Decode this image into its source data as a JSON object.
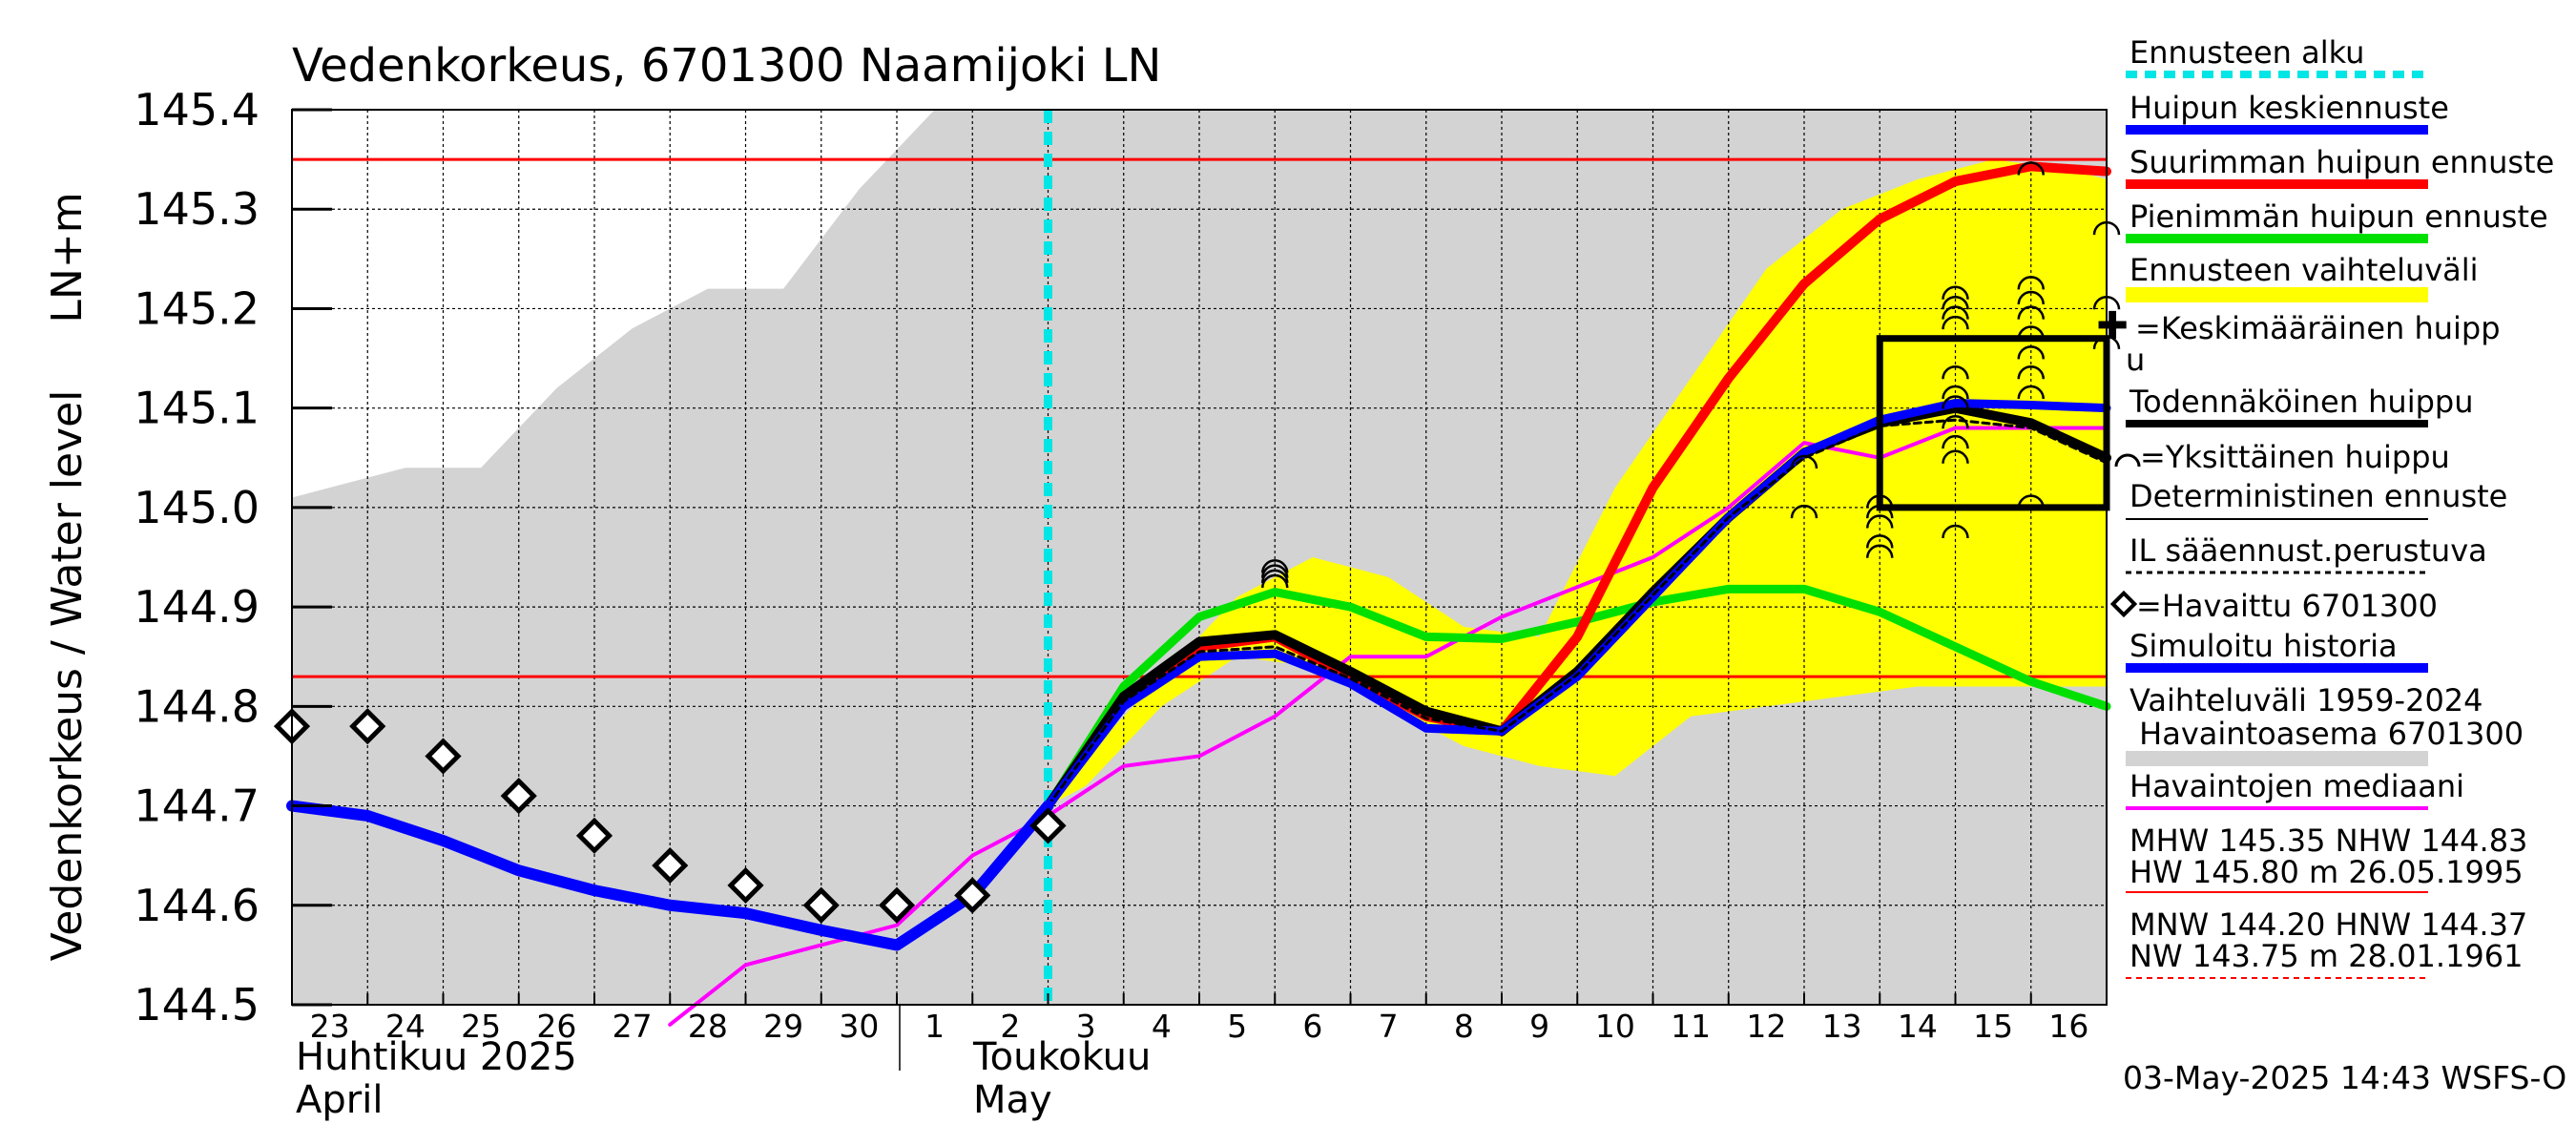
{
  "chart_data": {
    "type": "line",
    "title": "Vedenkorkeus, 6701300 Naamijoki LN",
    "ylabel_top": "LN+m",
    "ylabel": "Vedenkorkeus / Water level",
    "ylim": [
      144.5,
      145.4
    ],
    "yticks": [
      "144.5",
      "144.6",
      "144.7",
      "144.8",
      "144.9",
      "145.0",
      "145.1",
      "145.2",
      "145.3",
      "145.4"
    ],
    "xlim": [
      -0.5,
      23.5
    ],
    "x_tick_labels": [
      "23",
      "24",
      "25",
      "26",
      "27",
      "28",
      "29",
      "30",
      "1",
      "2",
      "3",
      "4",
      "5",
      "6",
      "7",
      "8",
      "9",
      "10",
      "11",
      "12",
      "13",
      "14",
      "15",
      "16"
    ],
    "month_labels": [
      {
        "line1": "Huhtikuu  2025",
        "line2": "April"
      },
      {
        "line1": "Toukokuu",
        "line2": "May"
      }
    ],
    "grid": true,
    "forecast_start_x": 9.5,
    "reference_levels": {
      "MHW": 145.35,
      "NHW": 144.83
    },
    "historical_range_1959_2024": {
      "x": [
        -0.5,
        1,
        2,
        3,
        4,
        5,
        6,
        7,
        7.5,
        8,
        9,
        10,
        11,
        12,
        13,
        14,
        15,
        16,
        17,
        18,
        19,
        20,
        21,
        22,
        23,
        23.5
      ],
      "upper": [
        145.01,
        145.04,
        145.04,
        145.12,
        145.18,
        145.22,
        145.22,
        145.32,
        145.36,
        145.4,
        145.4,
        145.4,
        145.4,
        145.4,
        145.4,
        145.4,
        145.4,
        145.4,
        145.4,
        145.4,
        145.4,
        145.4,
        145.4,
        145.4,
        145.4,
        145.4
      ],
      "lower": [
        144.5,
        144.5,
        144.5,
        144.5,
        144.5,
        144.5,
        144.5,
        144.5,
        144.5,
        144.5,
        144.5,
        144.5,
        144.5,
        144.5,
        144.5,
        144.5,
        144.5,
        144.5,
        144.5,
        144.5,
        144.5,
        144.5,
        144.5,
        144.5,
        144.5,
        144.5
      ]
    },
    "forecast_range": {
      "x": [
        9.5,
        10,
        11,
        12,
        13,
        14,
        15,
        16,
        17,
        18,
        19,
        20,
        21,
        22,
        23,
        23.5
      ],
      "upper": [
        144.7,
        144.75,
        144.83,
        144.91,
        144.95,
        144.93,
        144.88,
        144.87,
        145.02,
        145.13,
        145.24,
        145.3,
        145.33,
        145.35,
        145.34,
        145.33
      ],
      "lower": [
        144.7,
        144.72,
        144.8,
        144.85,
        144.84,
        144.8,
        144.76,
        144.74,
        144.73,
        144.79,
        144.8,
        144.81,
        144.82,
        144.82,
        144.82,
        144.82
      ]
    },
    "series": [
      {
        "name": "Simuloitu historia",
        "x": [
          -0.5,
          0.5,
          1.5,
          2.5,
          3.5,
          4.5,
          5.5,
          6.5,
          7.5,
          8.5,
          9.5
        ],
        "values": [
          144.7,
          144.69,
          144.665,
          144.635,
          144.615,
          144.6,
          144.592,
          144.575,
          144.56,
          144.61,
          144.7
        ]
      },
      {
        "name": "Huipun keskiennuste",
        "x": [
          9.5,
          10.5,
          11.5,
          12.5,
          13.5,
          14.5,
          15.5,
          16.5,
          17.5,
          18.5,
          19.5,
          20.5,
          21.5,
          22.5,
          23.5
        ],
        "values": [
          144.7,
          144.8,
          144.85,
          144.853,
          144.823,
          144.778,
          144.775,
          144.83,
          144.91,
          144.99,
          145.055,
          145.088,
          145.105,
          145.103,
          145.1
        ]
      },
      {
        "name": "Suurimman huipun ennuste",
        "x": [
          9.5,
          10.5,
          11.5,
          12.5,
          13.5,
          14.5,
          15.5,
          16.5,
          17.5,
          18.5,
          19.5,
          20.5,
          21.5,
          22.5,
          23.5
        ],
        "values": [
          144.7,
          144.81,
          144.86,
          144.87,
          144.83,
          144.79,
          144.775,
          144.87,
          145.02,
          145.13,
          145.225,
          145.29,
          145.328,
          145.343,
          145.338
        ]
      },
      {
        "name": "Pienimmän huipun ennuste",
        "x": [
          9.5,
          10.5,
          11.5,
          12.5,
          13.5,
          14.5,
          15.5,
          16.5,
          17.5,
          18.5,
          19.5,
          20.5,
          21.5,
          22.5,
          23.5
        ],
        "values": [
          144.7,
          144.82,
          144.89,
          144.915,
          144.9,
          144.87,
          144.868,
          144.885,
          144.905,
          144.918,
          144.918,
          144.895,
          144.86,
          144.825,
          144.8
        ]
      },
      {
        "name": "Todennäköinen huippu",
        "x": [
          9.5,
          10.5,
          11.5,
          12.5,
          13.5,
          14.5,
          15.5,
          16.5,
          17.5,
          18.5,
          19.5,
          20.5,
          21.5,
          22.5,
          23.5
        ],
        "values": [
          144.7,
          144.81,
          144.865,
          144.872,
          144.835,
          144.795,
          144.775,
          144.835,
          144.915,
          144.99,
          145.055,
          145.085,
          145.1,
          145.085,
          145.05
        ]
      },
      {
        "name": "IL sääennust.perustuva",
        "x": [
          9.5,
          10.5,
          11.5,
          12.5,
          13.5,
          14.5,
          15.5,
          16.5,
          17.5,
          18.5,
          19.5,
          20.5,
          21.5,
          22.5,
          23.5
        ],
        "values": [
          144.7,
          144.805,
          144.855,
          144.86,
          144.828,
          144.788,
          144.775,
          144.832,
          144.912,
          144.99,
          145.05,
          145.082,
          145.088,
          145.08,
          145.045
        ]
      },
      {
        "name": "Havaintojen mediaani",
        "x": [
          4.5,
          5.5,
          6.5,
          7.5,
          8.5,
          9.5,
          10.5,
          11.5,
          12.5,
          13.5,
          14.5,
          15.5,
          16.5,
          17.5,
          18.5,
          19.5,
          20.5,
          21.5,
          22.5,
          23.5
        ],
        "values": [
          144.48,
          144.54,
          144.56,
          144.58,
          144.65,
          144.69,
          144.74,
          144.75,
          144.79,
          144.85,
          144.85,
          144.89,
          144.92,
          144.95,
          145.0,
          145.065,
          145.05,
          145.08,
          145.08,
          145.08
        ]
      }
    ],
    "observed": {
      "name": "Havaittu 6701300",
      "x": [
        -0.5,
        0.5,
        1.5,
        2.5,
        3.5,
        4.5,
        5.5,
        6.5,
        7.5,
        8.5,
        9.5
      ],
      "values": [
        144.78,
        144.78,
        144.75,
        144.71,
        144.67,
        144.64,
        144.62,
        144.6,
        144.6,
        144.61,
        144.68
      ]
    },
    "individual_peaks": [
      {
        "x": 12.5,
        "values": [
          144.94,
          144.935,
          144.93,
          144.925
        ]
      },
      {
        "x": 19.5,
        "values": [
          145.045,
          144.995
        ]
      },
      {
        "x": 20.5,
        "values": [
          145.005,
          144.995,
          144.985,
          144.965,
          144.955
        ]
      },
      {
        "x": 21.5,
        "values": [
          145.215,
          145.205,
          145.195,
          145.185,
          145.135,
          145.115,
          145.105,
          145.085,
          145.065,
          145.05,
          144.975
        ]
      },
      {
        "x": 22.5,
        "values": [
          145.34,
          145.225,
          145.21,
          145.195,
          145.175,
          145.155,
          145.135,
          145.115,
          145.005
        ]
      },
      {
        "x": 23.5,
        "values": [
          145.28,
          145.205,
          145.165
        ]
      }
    ],
    "probable_peak_box": {
      "x0": 20.5,
      "x1": 23.5,
      "y0": 145.0,
      "y1": 145.17
    },
    "legend": {
      "entries": [
        "Ennusteen alku",
        "Huipun keskiennuste",
        "Suurimman huipun ennuste",
        "Pienimmän huipun ennuste",
        "Ennusteen vaihteluväli",
        "=Keskimääräinen huipp",
        "u",
        "Todennäköinen huippu",
        "=Yksittäinen huippu",
        "Deterministinen ennuste",
        "IL sääennust.perustuva",
        "=Havaittu 6701300",
        "Simuloitu historia",
        "Vaihteluväli 1959-2024",
        " Havaintoasema 6701300",
        "Havaintojen mediaani",
        "MHW 145.35 NHW 144.83",
        "HW 145.80 m 26.05.1995",
        "MNW 144.20 HNW 144.37",
        "NW 143.75 m 28.01.1961"
      ]
    },
    "timestamp": "03-May-2025 14:43 WSFS-O",
    "colors": {
      "historical_range": "#d3d3d3",
      "forecast_range": "#ffff00",
      "forecast_start": "#00e5e5",
      "mean_peak": "#0000ff",
      "max_peak": "#ff0000",
      "min_peak": "#00e000",
      "probable": "#000000",
      "median": "#ff00ff",
      "reference_line": "#ff0000"
    }
  }
}
